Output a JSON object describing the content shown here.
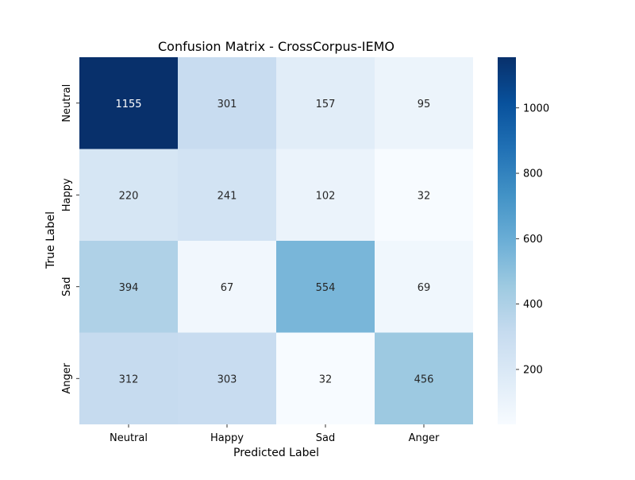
{
  "chart_data": {
    "type": "heatmap",
    "title": "Confusion Matrix - CrossCorpus-IEMO",
    "xlabel": "Predicted Label",
    "ylabel": "True Label",
    "x_categories": [
      "Neutral",
      "Happy",
      "Sad",
      "Anger"
    ],
    "y_categories": [
      "Neutral",
      "Happy",
      "Sad",
      "Anger"
    ],
    "values": [
      [
        1155,
        301,
        157,
        95
      ],
      [
        220,
        241,
        102,
        32
      ],
      [
        394,
        67,
        554,
        69
      ],
      [
        312,
        303,
        32,
        456
      ]
    ],
    "colormap": "Blues",
    "colorbar": {
      "min": 32,
      "max": 1155,
      "ticks": [
        200,
        400,
        600,
        800,
        1000
      ]
    },
    "colors": {
      "text_dark": "#262626",
      "text_light": "#ffffff"
    }
  }
}
